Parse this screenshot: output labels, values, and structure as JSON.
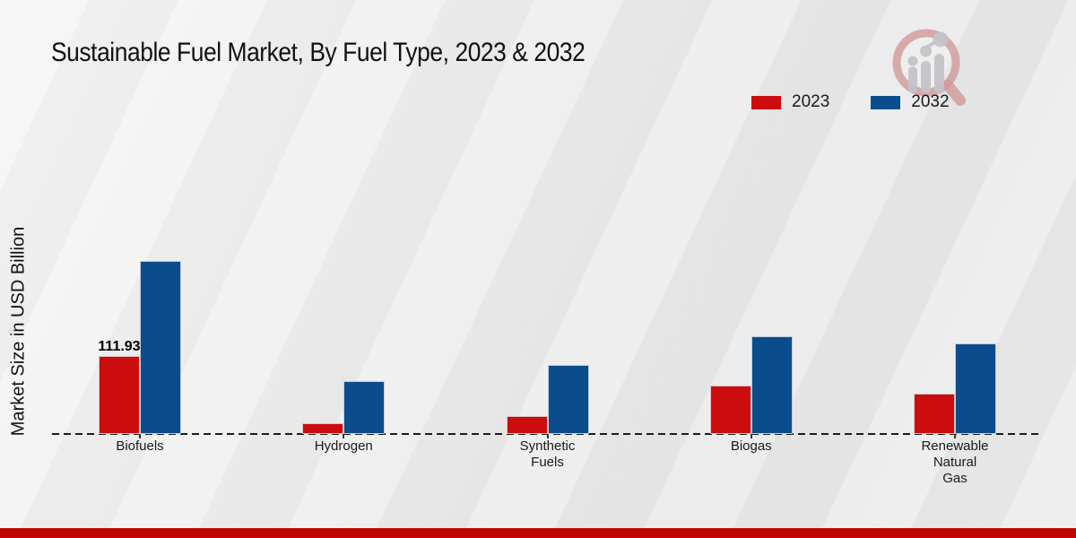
{
  "page": {
    "title": "Sustainable Fuel Market, By Fuel Type, 2023 & 2032"
  },
  "chart_data": {
    "type": "bar",
    "title": "Sustainable Fuel Market, By Fuel Type, 2023 & 2032",
    "xlabel": "",
    "ylabel": "Market Size in USD Billion",
    "categories": [
      "Biofuels",
      "Hydrogen",
      "Synthetic Fuels",
      "Biogas",
      "Renewable Natural Gas"
    ],
    "tick_labels": [
      "Biofuels",
      "Hydrogen",
      "Synthetic\nFuels",
      "Biogas",
      "Renewable\nNatural\nGas"
    ],
    "series": [
      {
        "name": "2023",
        "color": "#cc0d0d",
        "values": [
          111.93,
          15.4,
          25.7,
          69.5,
          57.9
        ]
      },
      {
        "name": "2032",
        "color": "#0b4d8c",
        "values": [
          248.3,
          75.9,
          99.1,
          140.2,
          130.0
        ]
      }
    ],
    "annotations": [
      {
        "category_index": 0,
        "series_index": 0,
        "text": "111.93"
      }
    ],
    "ylim": [
      0,
      260
    ],
    "grid": false,
    "baseline_style": "dashed",
    "legend_position": "top-right"
  },
  "branding": {
    "logo_icon": "magnifier-bar-chart-logo",
    "footer_color": "#c10404",
    "baseline_color": "#1c1c1c"
  }
}
